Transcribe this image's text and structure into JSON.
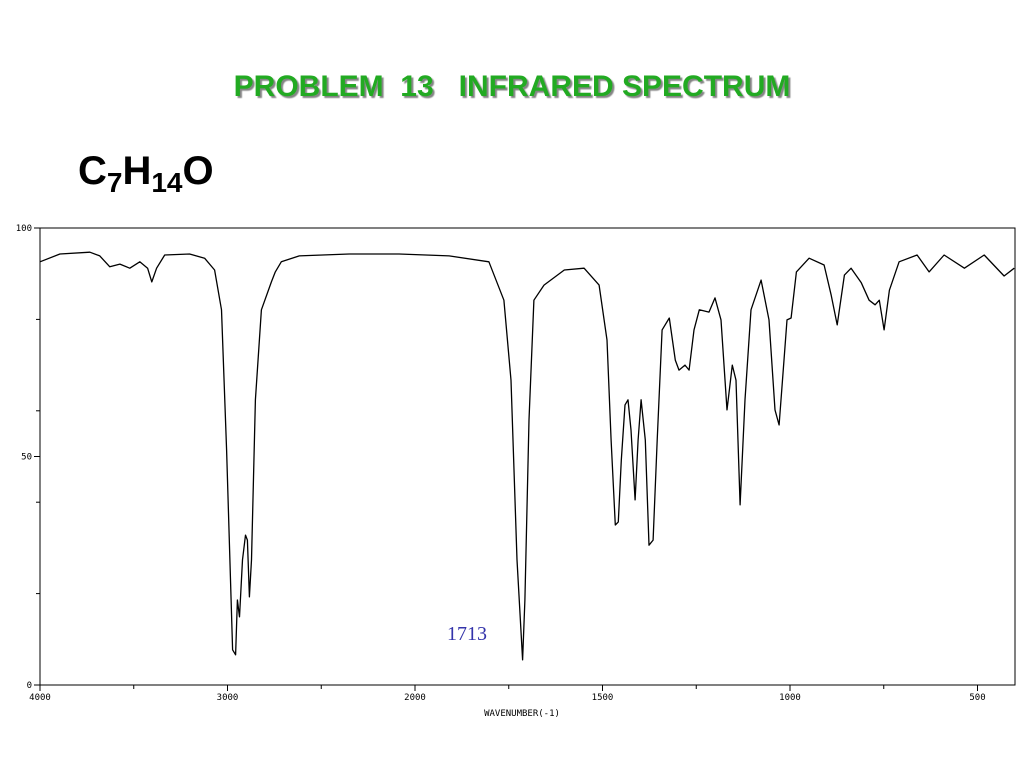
{
  "chart_data": {
    "type": "line",
    "title": "PROBLEM  13   INFRARED SPECTRUM",
    "subtitle": "C7H14O",
    "x_label": "WAVENUMBER(-1)",
    "annotation": "1713",
    "x": [
      4000,
      3894,
      3734,
      3681,
      3628,
      3574,
      3521,
      3468,
      3426,
      3404,
      3378,
      3335,
      3202,
      3122,
      3069,
      3032,
      3005,
      2973,
      2957,
      2947,
      2936,
      2920,
      2904,
      2894,
      2883,
      2872,
      2851,
      2819,
      2766,
      2745,
      2713,
      2617,
      2351,
      2085,
      1909,
      1803,
      1763,
      1744,
      1728,
      1713,
      1707,
      1696,
      1683,
      1656,
      1602,
      1549,
      1509,
      1488,
      1477,
      1466,
      1458,
      1450,
      1440,
      1432,
      1424,
      1413,
      1405,
      1397,
      1386,
      1376,
      1365,
      1354,
      1341,
      1322,
      1306,
      1296,
      1280,
      1269,
      1256,
      1242,
      1216,
      1200,
      1184,
      1168,
      1154,
      1144,
      1133,
      1120,
      1104,
      1077,
      1056,
      1040,
      1029,
      1016,
      1008,
      997,
      983,
      949,
      909,
      890,
      874,
      855,
      837,
      810,
      789,
      773,
      762,
      749,
      735,
      709,
      661,
      629,
      589,
      535,
      482,
      429,
      402
    ],
    "series": [
      {
        "color": "#000000",
        "values": [
          92.6,
          94.3,
          94.7,
          93.9,
          91.5,
          92.1,
          91.2,
          92.6,
          91.2,
          88.2,
          91.2,
          94.1,
          94.3,
          93.4,
          90.8,
          82.1,
          51.4,
          7.7,
          6.6,
          18.6,
          14.9,
          27.4,
          32.8,
          31.7,
          19.3,
          27.4,
          62.4,
          82.1,
          88.2,
          90.4,
          92.6,
          93.9,
          94.3,
          94.3,
          93.9,
          92.6,
          84.2,
          66.7,
          27.4,
          5.5,
          18.6,
          58.0,
          84.2,
          87.5,
          90.8,
          91.2,
          87.5,
          75.5,
          53.6,
          35.0,
          35.7,
          49.2,
          61.3,
          62.4,
          55.8,
          40.5,
          53.6,
          62.4,
          53.6,
          30.6,
          31.7,
          53.6,
          77.7,
          80.3,
          71.1,
          68.9,
          70.0,
          68.9,
          77.7,
          82.1,
          81.6,
          84.7,
          79.9,
          60.2,
          70.0,
          66.7,
          39.4,
          62.4,
          82.1,
          88.6,
          79.9,
          60.2,
          56.9,
          71.1,
          79.9,
          80.3,
          90.4,
          93.4,
          91.9,
          85.3,
          78.8,
          89.7,
          91.2,
          88.0,
          84.2,
          83.2,
          84.2,
          77.7,
          86.4,
          92.6,
          94.1,
          90.4,
          94.1,
          91.2,
          94.1,
          89.5,
          91.2
        ]
      }
    ],
    "xlim": [
      4000,
      400
    ],
    "xticks": [
      4000,
      3000,
      2000,
      1500,
      1000,
      500
    ],
    "xminor": [
      3500,
      2500,
      1750,
      1250,
      750
    ],
    "ylim": [
      0,
      100
    ],
    "yticks": [
      0,
      50,
      100
    ],
    "yminor": [
      20,
      40,
      60,
      80
    ]
  }
}
